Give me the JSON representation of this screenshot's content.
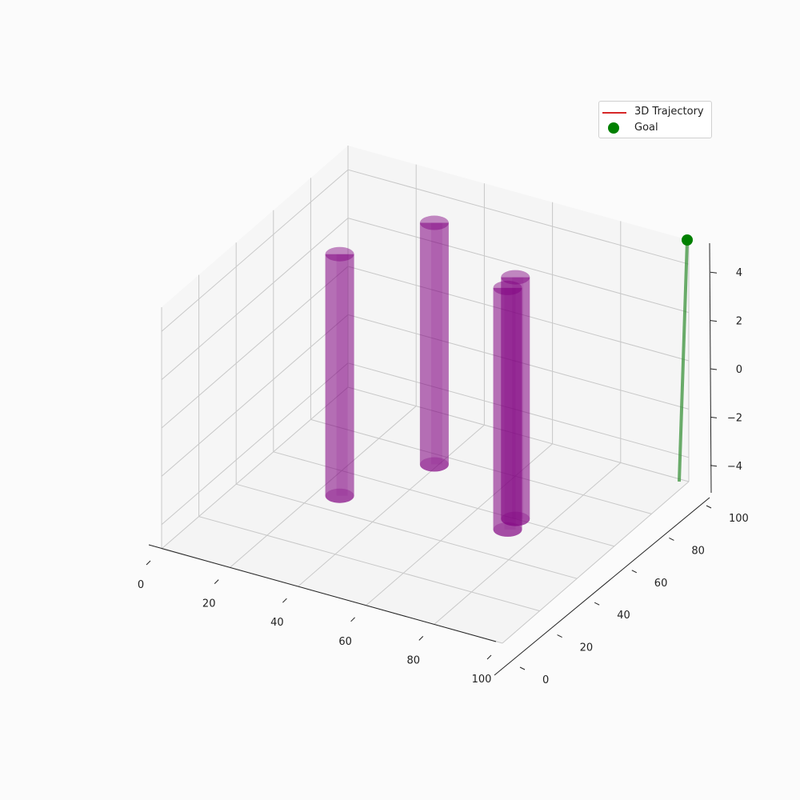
{
  "chart_data": {
    "type": "scatter",
    "projection": "3d",
    "xlim": [
      0,
      100
    ],
    "ylim": [
      0,
      100
    ],
    "zlim": [
      -5,
      5
    ],
    "x_ticks": [
      0,
      20,
      40,
      60,
      80,
      100
    ],
    "y_ticks": [
      0,
      20,
      40,
      60,
      80,
      100
    ],
    "z_ticks": [
      -4,
      -2,
      0,
      2,
      4
    ],
    "x_tick_labels": [
      "0",
      "20",
      "40",
      "60",
      "80",
      "100"
    ],
    "y_tick_labels": [
      "0",
      "20",
      "40",
      "60",
      "80",
      "100"
    ],
    "z_tick_labels": [
      "−4",
      "−2",
      "0",
      "2",
      "4"
    ],
    "grid": true,
    "legend": {
      "placement": "top-right",
      "entries": [
        {
          "label": "3D Trajectory",
          "marker": "line",
          "color": "#d62728"
        },
        {
          "label": "Goal",
          "marker": "dot",
          "color": "#008000"
        }
      ]
    },
    "obstacles": [
      {
        "x": 26,
        "y": 48,
        "z_min": -5,
        "z_max": 5,
        "color": "#800080"
      },
      {
        "x": 39,
        "y": 75,
        "z_min": -5,
        "z_max": 5,
        "color": "#800080"
      },
      {
        "x": 72,
        "y": 54,
        "z_min": -5,
        "z_max": 5,
        "color": "#800080"
      },
      {
        "x": 71,
        "y": 60,
        "z_min": -5,
        "z_max": 5,
        "color": "#800080"
      }
    ],
    "goal": {
      "x": 100,
      "y": 100,
      "z": 5,
      "color": "#008000"
    },
    "goal_line": {
      "x": 100,
      "y": 100,
      "z_from": -5,
      "z_to": 5,
      "color": "#2e8b2e"
    }
  }
}
